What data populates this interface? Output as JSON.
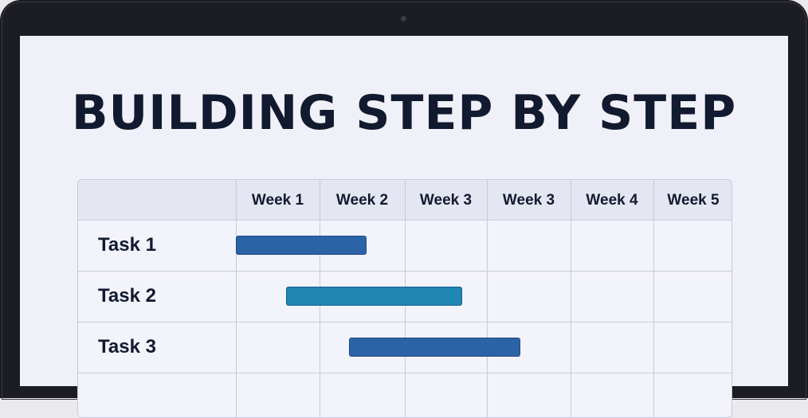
{
  "title": "BUILDING STEP BY STEP",
  "colors": {
    "bezel": "#1c1d22",
    "screen": "#f0f0f8",
    "header": "#e4e6f1",
    "bar_dark_blue": "#2a64a6",
    "bar_teal_blue": "#1f85b3"
  },
  "chart_data": {
    "type": "gantt",
    "title": "BUILDING STEP BY STEP",
    "columns": [
      "Week 1",
      "Week 2",
      "Week 3",
      "Week 3",
      "Week 4",
      "Week 5"
    ],
    "tasks": [
      {
        "name": "Task 1",
        "start": 0.0,
        "end": 1.55,
        "color": "#2a64a6"
      },
      {
        "name": "Task 2",
        "start": 0.6,
        "end": 2.7,
        "color": "#1f85b3"
      },
      {
        "name": "Task 3",
        "start": 1.35,
        "end": 3.4,
        "color": "#2a64a6"
      }
    ],
    "grid": true,
    "legend": "none"
  }
}
